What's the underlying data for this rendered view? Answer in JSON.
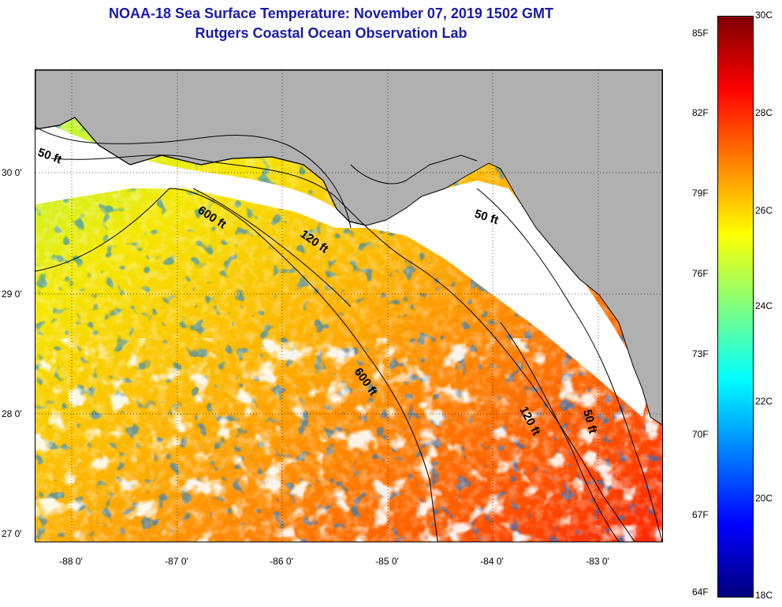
{
  "title_line1": "NOAA-18 Sea Surface Temperature:  November 07, 2019 1502 GMT",
  "title_line2": "Rutgers Coastal Ocean Observation Lab",
  "map": {
    "latitude_ticks": [
      "30 0'",
      "29 0'",
      "28 0'",
      "27 0'"
    ],
    "longitude_ticks": [
      "-88 0'",
      "-87 0'",
      "-86 0'",
      "-85 0'",
      "-84 0'",
      "-83 0'"
    ],
    "contour_labels": {
      "c50_west": "50 ft",
      "c600_north": "600 ft",
      "c120_north": "120 ft",
      "c50_east": "50 ft",
      "c600_south": "600 ft",
      "c120_south": "120 ft",
      "c50_south": "50 ft"
    },
    "colors": {
      "land": "#b0b0b0",
      "cloud": "#ffffff",
      "coast": "#000000"
    }
  },
  "colorbar": {
    "fahrenheit_labels": [
      "85F",
      "82F",
      "79F",
      "76F",
      "73F",
      "70F",
      "67F",
      "64F"
    ],
    "celsius_labels": [
      "30C",
      "28C",
      "26C",
      "24C",
      "22C",
      "20C",
      "18C"
    ],
    "min_c": 18,
    "max_c": 30
  }
}
